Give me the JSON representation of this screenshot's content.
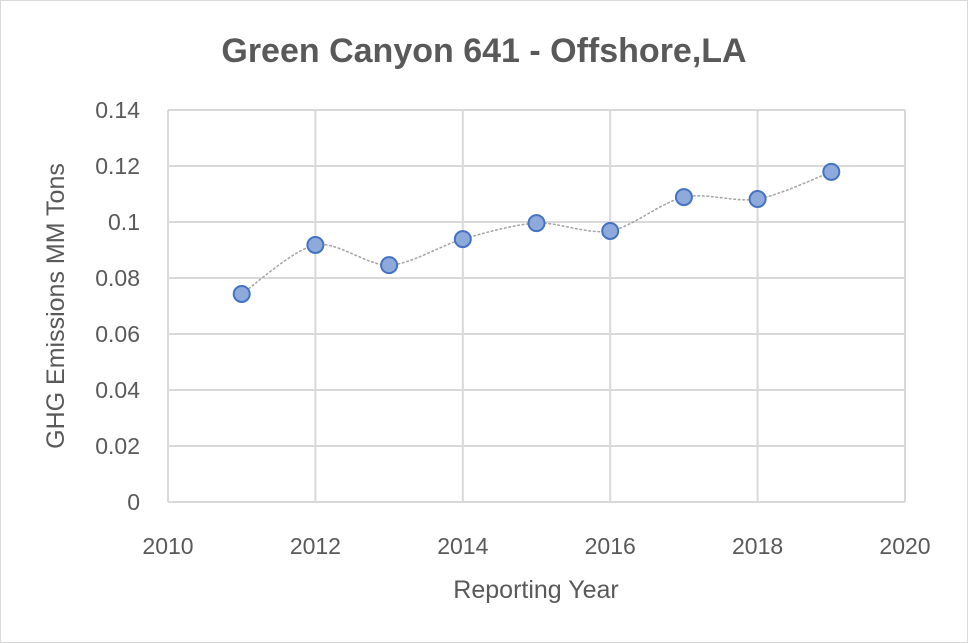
{
  "chart_data": {
    "type": "scatter",
    "title": "Green Canyon 641 - Offshore,LA",
    "xlabel": "Reporting Year",
    "ylabel": "GHG Emissions MM Tons",
    "xlim": [
      2010,
      2020
    ],
    "ylim": [
      0,
      0.14
    ],
    "x_ticks": [
      2010,
      2012,
      2014,
      2016,
      2018,
      2020
    ],
    "y_ticks": [
      0,
      0.02,
      0.04,
      0.06,
      0.08,
      0.1,
      0.12,
      0.14
    ],
    "y_tick_labels": [
      "0",
      "0.02",
      "0.04",
      "0.06",
      "0.08",
      "0.1",
      "0.12",
      "0.14"
    ],
    "x_tick_labels": [
      "2010",
      "2012",
      "2014",
      "2016",
      "2018",
      "2020"
    ],
    "grid": true,
    "legend": "none",
    "series": [
      {
        "name": "GHG Emissions",
        "x": [
          2011,
          2012,
          2013,
          2014,
          2015,
          2016,
          2017,
          2018,
          2019
        ],
        "y": [
          0.0743,
          0.0918,
          0.0846,
          0.0939,
          0.0996,
          0.0968,
          0.1089,
          0.1082,
          0.1179
        ],
        "marker_fill": "#8eaadb",
        "marker_stroke": "#4472c4",
        "line_color": "#a6a6a6",
        "line_style": "dotted"
      }
    ],
    "colors": {
      "grid": "#d9d9d9",
      "text": "#595959"
    }
  }
}
